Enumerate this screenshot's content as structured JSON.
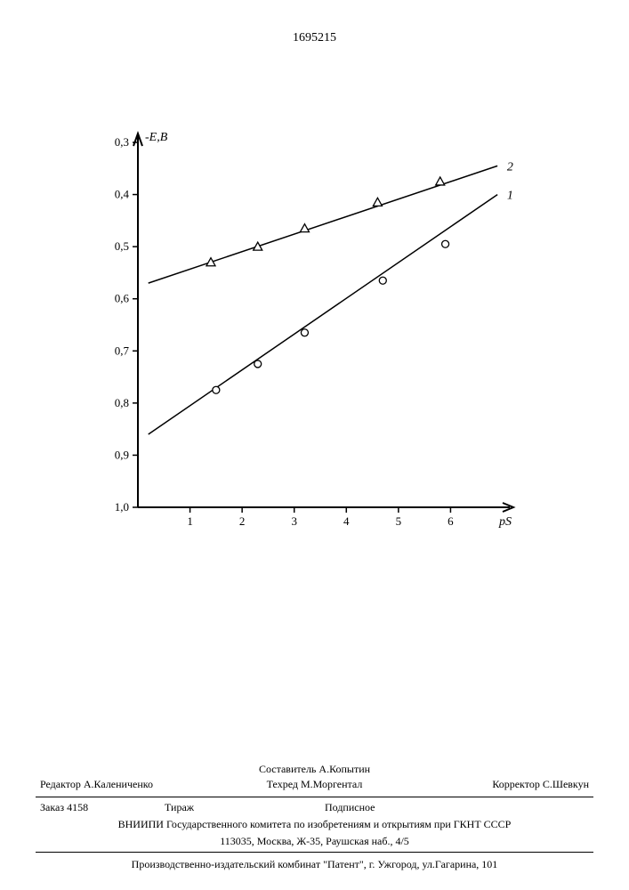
{
  "page_number": "1695215",
  "chart": {
    "type": "line",
    "ylabel": "-Е,В",
    "xlabel": "рS",
    "ylim_top": 0.3,
    "ylim_bottom": 1.0,
    "xlim": [
      0,
      7
    ],
    "xticks": [
      1,
      2,
      3,
      4,
      5,
      6
    ],
    "yticks": [
      0.3,
      0.4,
      0.5,
      0.6,
      0.7,
      0.8,
      0.9,
      1.0
    ],
    "background_color": "#ffffff",
    "axis_color": "#000000",
    "axis_width": 2,
    "tick_fontsize": 13,
    "label_fontsize": 14,
    "series": [
      {
        "name": "1",
        "marker": "circle",
        "color": "#000000",
        "line_width": 1.5,
        "line_start": [
          0.2,
          0.86
        ],
        "line_end": [
          6.9,
          0.4
        ],
        "points": [
          [
            1.5,
            0.775
          ],
          [
            2.3,
            0.725
          ],
          [
            3.2,
            0.665
          ],
          [
            4.7,
            0.565
          ],
          [
            5.9,
            0.495
          ]
        ],
        "label_pos": [
          7.05,
          0.4
        ]
      },
      {
        "name": "2",
        "marker": "triangle",
        "color": "#000000",
        "line_width": 1.5,
        "line_start": [
          0.2,
          0.57
        ],
        "line_end": [
          6.9,
          0.345
        ],
        "points": [
          [
            1.4,
            0.53
          ],
          [
            2.3,
            0.5
          ],
          [
            3.2,
            0.465
          ],
          [
            4.6,
            0.415
          ],
          [
            5.8,
            0.375
          ]
        ],
        "label_pos": [
          7.05,
          0.345
        ]
      }
    ]
  },
  "footer": {
    "compiler_label": "Составитель",
    "compiler": "А.Копытин",
    "editor_label": "Редактор",
    "editor": "А.Калениченко",
    "techred_label": "Техред",
    "techred": "М.Моргентал",
    "corrector_label": "Корректор",
    "corrector": "С.Шевкун",
    "order_label": "Заказ",
    "order": "4158",
    "tirazh_label": "Тираж",
    "subscription_label": "Подписное",
    "org_line": "ВНИИПИ Государственного комитета по изобретениям и открытиям при ГКНТ СССР",
    "addr_line": "113035, Москва, Ж-35, Раушская наб., 4/5",
    "prod_line": "Производственно-издательский комбинат \"Патент\", г. Ужгород, ул.Гагарина, 101"
  }
}
